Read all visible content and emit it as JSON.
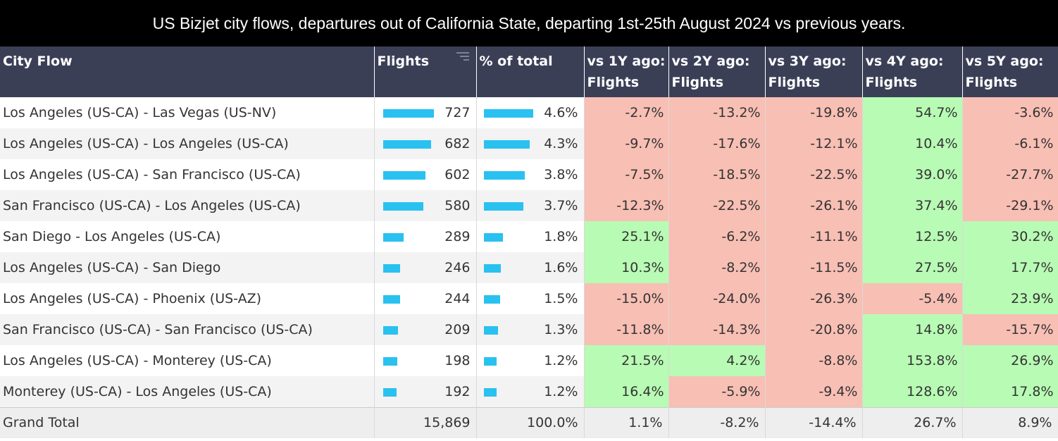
{
  "title": "US Bizjet city flows, departures out of California State, departing 1st-25th August 2024 vs previous years.",
  "colors": {
    "header_bg": "#3b3f56",
    "bar": "#29c1f0",
    "negative": "#f8bfb4",
    "positive": "#b8fbb4"
  },
  "headers": {
    "city_flow": "City Flow",
    "flights": "Flights",
    "pct_total": "% of total",
    "vs1_a": "vs 1Y ago:",
    "vs1_b": "Flights",
    "vs2_a": "vs 2Y ago:",
    "vs2_b": "Flights",
    "vs3_a": "vs 3Y ago:",
    "vs3_b": "Flights",
    "vs4_a": "vs 4Y ago:",
    "vs4_b": "Flights",
    "vs5_a": "vs 5Y ago:",
    "vs5_b": "Flights",
    "sort_icon": "sort-icon"
  },
  "rows": [
    {
      "flow": "Los Angeles (US-CA) - Las Vegas (US-NV)",
      "flights": "727",
      "flights_value": 727,
      "pct": "4.6%",
      "pct_value": 4.6,
      "vs1": "-2.7%",
      "vs2": "-13.2%",
      "vs3": "-19.8%",
      "vs4": "54.7%",
      "vs5": "-3.6%"
    },
    {
      "flow": "Los Angeles (US-CA) - Los Angeles (US-CA)",
      "flights": "682",
      "flights_value": 682,
      "pct": "4.3%",
      "pct_value": 4.3,
      "vs1": "-9.7%",
      "vs2": "-17.6%",
      "vs3": "-12.1%",
      "vs4": "10.4%",
      "vs5": "-6.1%"
    },
    {
      "flow": "Los Angeles (US-CA) - San Francisco (US-CA)",
      "flights": "602",
      "flights_value": 602,
      "pct": "3.8%",
      "pct_value": 3.8,
      "vs1": "-7.5%",
      "vs2": "-18.5%",
      "vs3": "-22.5%",
      "vs4": "39.0%",
      "vs5": "-27.7%"
    },
    {
      "flow": "San Francisco (US-CA) - Los Angeles (US-CA)",
      "flights": "580",
      "flights_value": 580,
      "pct": "3.7%",
      "pct_value": 3.7,
      "vs1": "-12.3%",
      "vs2": "-22.5%",
      "vs3": "-26.1%",
      "vs4": "37.4%",
      "vs5": "-29.1%"
    },
    {
      "flow": "San Diego - Los Angeles (US-CA)",
      "flights": "289",
      "flights_value": 289,
      "pct": "1.8%",
      "pct_value": 1.8,
      "vs1": "25.1%",
      "vs2": "-6.2%",
      "vs3": "-11.1%",
      "vs4": "12.5%",
      "vs5": "30.2%"
    },
    {
      "flow": "Los Angeles (US-CA) - San Diego",
      "flights": "246",
      "flights_value": 246,
      "pct": "1.6%",
      "pct_value": 1.6,
      "vs1": "10.3%",
      "vs2": "-8.2%",
      "vs3": "-11.5%",
      "vs4": "27.5%",
      "vs5": "17.7%"
    },
    {
      "flow": "Los Angeles (US-CA) - Phoenix (US-AZ)",
      "flights": "244",
      "flights_value": 244,
      "pct": "1.5%",
      "pct_value": 1.5,
      "vs1": "-15.0%",
      "vs2": "-24.0%",
      "vs3": "-26.3%",
      "vs4": "-5.4%",
      "vs5": "23.9%"
    },
    {
      "flow": "San Francisco (US-CA) - San Francisco (US-CA)",
      "flights": "209",
      "flights_value": 209,
      "pct": "1.3%",
      "pct_value": 1.3,
      "vs1": "-11.8%",
      "vs2": "-14.3%",
      "vs3": "-20.8%",
      "vs4": "14.8%",
      "vs5": "-15.7%"
    },
    {
      "flow": "Los Angeles (US-CA) - Monterey (US-CA)",
      "flights": "198",
      "flights_value": 198,
      "pct": "1.2%",
      "pct_value": 1.2,
      "vs1": "21.5%",
      "vs2": "4.2%",
      "vs3": "-8.8%",
      "vs4": "153.8%",
      "vs5": "26.9%"
    },
    {
      "flow": "Monterey (US-CA) - Los Angeles (US-CA)",
      "flights": "192",
      "flights_value": 192,
      "pct": "1.2%",
      "pct_value": 1.2,
      "vs1": "16.4%",
      "vs2": "-5.9%",
      "vs3": "-9.4%",
      "vs4": "128.6%",
      "vs5": "17.8%"
    }
  ],
  "total": {
    "label": "Grand Total",
    "flights": "15,869",
    "pct": "100.0%",
    "vs1": "1.1%",
    "vs2": "-8.2%",
    "vs3": "-14.4%",
    "vs4": "26.7%",
    "vs5": "8.9%"
  }
}
